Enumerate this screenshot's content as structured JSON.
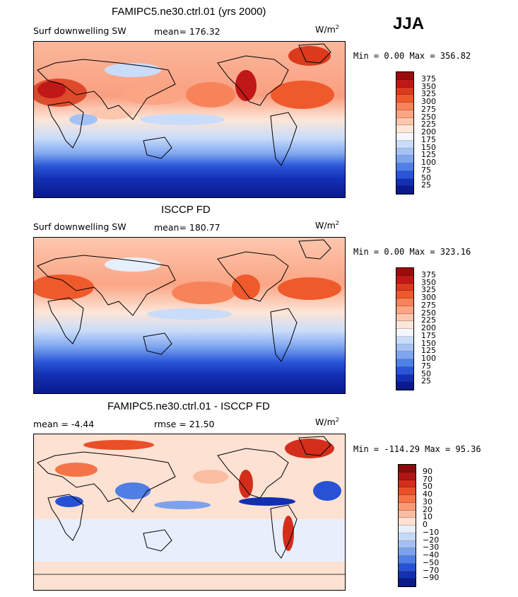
{
  "season": "JJA",
  "panels": [
    {
      "title": "FAMIPC5.ne30.ctrl.01 (yrs 2000)",
      "left_text": "Surf downwelling SW",
      "mid_text": "mean= 176.32",
      "units": "W/m",
      "units_sup": "2",
      "minmax": "Min =   0.00 Max = 356.82",
      "colorbar": {
        "labels": [
          "375",
          "350",
          "325",
          "300",
          "275",
          "250",
          "225",
          "200",
          "175",
          "150",
          "125",
          "100",
          "75",
          "50",
          "25"
        ],
        "colors": [
          "#9b0d0d",
          "#c01818",
          "#db3a1c",
          "#ef5a2c",
          "#f7835a",
          "#fba585",
          "#fcc7ae",
          "#fde6d8",
          "#f4f7fd",
          "#c9dcfa",
          "#a4c2f5",
          "#7ea6ef",
          "#4e80e8",
          "#2a55d8",
          "#1330b5",
          "#0a1a8e"
        ]
      }
    },
    {
      "title": "ISCCP FD",
      "left_text": "Surf downwelling SW",
      "mid_text": "mean= 180.77",
      "units": "W/m",
      "units_sup": "2",
      "minmax": "Min =   0.00 Max = 323.16",
      "colorbar": {
        "labels": [
          "375",
          "350",
          "325",
          "300",
          "275",
          "250",
          "225",
          "200",
          "175",
          "150",
          "125",
          "100",
          "75",
          "50",
          "25"
        ],
        "colors": [
          "#9b0d0d",
          "#c01818",
          "#db3a1c",
          "#ef5a2c",
          "#f7835a",
          "#fba585",
          "#fcc7ae",
          "#fde6d8",
          "#f4f7fd",
          "#c9dcfa",
          "#a4c2f5",
          "#7ea6ef",
          "#4e80e8",
          "#2a55d8",
          "#1330b5",
          "#0a1a8e"
        ]
      }
    },
    {
      "title": "FAMIPC5.ne30.ctrl.01 - ISCCP FD",
      "left_text": "mean =   -4.44",
      "mid_text": "rmse =  21.50",
      "units": "W/m",
      "units_sup": "2",
      "minmax": "Min = -114.29 Max =  95.36",
      "colorbar": {
        "labels": [
          "90",
          "70",
          "50",
          "40",
          "30",
          "20",
          "10",
          "0",
          "-10",
          "-20",
          "-30",
          "-40",
          "-50",
          "-70",
          "-90"
        ],
        "colors": [
          "#8a0a0a",
          "#b01616",
          "#d32e1c",
          "#ea4f28",
          "#f47448",
          "#f99a76",
          "#fbbda2",
          "#fde1d2",
          "#e7effc",
          "#c6d8f8",
          "#a3bff3",
          "#7ca2ec",
          "#4f7ee4",
          "#2852d4",
          "#1330b2",
          "#0a1a86"
        ]
      }
    }
  ]
}
